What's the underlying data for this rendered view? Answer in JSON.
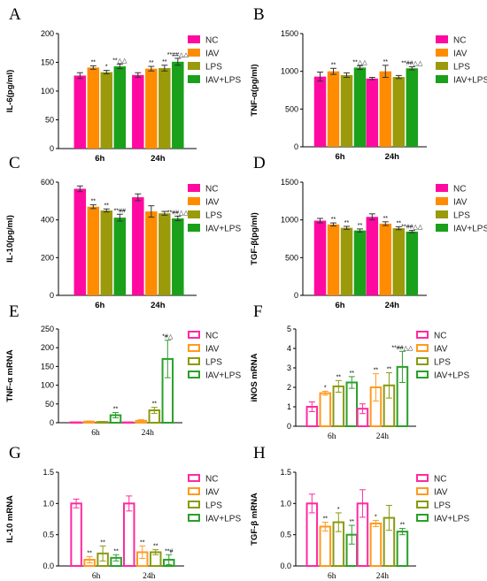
{
  "chart_data": [
    {
      "panel": "A",
      "type": "bar",
      "filled": true,
      "categories": [
        "6h",
        "24h"
      ],
      "ylabel": "IL-6(pg/ml)",
      "ylim": [
        0,
        200
      ],
      "yticks": [
        0,
        50,
        100,
        150,
        200
      ],
      "series": [
        {
          "name": "NC",
          "color": "#ff0aa0",
          "values": [
            127,
            128
          ],
          "errors": [
            5,
            4
          ]
        },
        {
          "name": "IAV",
          "color": "#ff8c00",
          "values": [
            141,
            139
          ],
          "errors": [
            3,
            4
          ]
        },
        {
          "name": "LPS",
          "color": "#9a9a0a",
          "values": [
            133,
            140
          ],
          "errors": [
            3,
            5
          ]
        },
        {
          "name": "IAV+LPS",
          "color": "#1aa01a",
          "values": [
            143,
            151
          ],
          "errors": [
            4,
            6
          ]
        }
      ],
      "annotations": [
        [
          "",
          "**",
          "*",
          "**△△"
        ],
        [
          "",
          "**",
          "**",
          "**##△△"
        ]
      ]
    },
    {
      "panel": "B",
      "type": "bar",
      "filled": true,
      "categories": [
        "6h",
        "24h"
      ],
      "ylabel": "TNF-α(pg/ml)",
      "ylim": [
        0,
        1500
      ],
      "yticks": [
        0,
        500,
        1000,
        1500
      ],
      "series": [
        {
          "name": "NC",
          "color": "#ff0aa0",
          "values": [
            930,
            905
          ],
          "errors": [
            60,
            15
          ]
        },
        {
          "name": "IAV",
          "color": "#ff8c00",
          "values": [
            1000,
            1000
          ],
          "errors": [
            40,
            80
          ]
        },
        {
          "name": "LPS",
          "color": "#9a9a0a",
          "values": [
            950,
            925
          ],
          "errors": [
            30,
            20
          ]
        },
        {
          "name": "IAV+LPS",
          "color": "#1aa01a",
          "values": [
            1050,
            1040
          ],
          "errors": [
            25,
            20
          ]
        }
      ],
      "annotations": [
        [
          "",
          "**",
          "",
          "**△△"
        ],
        [
          "",
          "**",
          "",
          "**##△△"
        ]
      ]
    },
    {
      "panel": "C",
      "type": "bar",
      "filled": true,
      "categories": [
        "6h",
        "24h"
      ],
      "ylabel": "IL-10(pg/ml)",
      "ylim": [
        0,
        600
      ],
      "yticks": [
        0,
        200,
        400,
        600
      ],
      "series": [
        {
          "name": "NC",
          "color": "#ff0aa0",
          "values": [
            565,
            520
          ],
          "errors": [
            15,
            18
          ]
        },
        {
          "name": "IAV",
          "color": "#ff8c00",
          "values": [
            470,
            445
          ],
          "errors": [
            10,
            30
          ]
        },
        {
          "name": "LPS",
          "color": "#9a9a0a",
          "values": [
            450,
            435
          ],
          "errors": [
            8,
            10
          ]
        },
        {
          "name": "IAV+LPS",
          "color": "#1aa01a",
          "values": [
            412,
            408
          ],
          "errors": [
            18,
            12
          ]
        }
      ],
      "annotations": [
        [
          "",
          "**",
          "**",
          "**##"
        ],
        [
          "",
          "",
          "",
          "**##△△"
        ]
      ]
    },
    {
      "panel": "D",
      "type": "bar",
      "filled": true,
      "categories": [
        "6h",
        "24h"
      ],
      "ylabel": "TGF-β(pg/ml)",
      "ylim": [
        0,
        1500
      ],
      "yticks": [
        0,
        500,
        1000,
        1500
      ],
      "series": [
        {
          "name": "NC",
          "color": "#ff0aa0",
          "values": [
            990,
            1040
          ],
          "errors": [
            30,
            40
          ]
        },
        {
          "name": "IAV",
          "color": "#ff8c00",
          "values": [
            940,
            950
          ],
          "errors": [
            20,
            25
          ]
        },
        {
          "name": "LPS",
          "color": "#9a9a0a",
          "values": [
            895,
            890
          ],
          "errors": [
            20,
            20
          ]
        },
        {
          "name": "IAV+LPS",
          "color": "#1aa01a",
          "values": [
            860,
            845
          ],
          "errors": [
            20,
            15
          ]
        }
      ],
      "annotations": [
        [
          "",
          "**",
          "**",
          "**"
        ],
        [
          "",
          "**",
          "**",
          "**##△△"
        ]
      ]
    },
    {
      "panel": "E",
      "type": "bar",
      "filled": false,
      "categories": [
        "6h",
        "24h"
      ],
      "ylabel": "TNF-α  mRNA",
      "ylim": [
        0,
        250
      ],
      "yticks": [
        0,
        50,
        100,
        150,
        200,
        250
      ],
      "series": [
        {
          "name": "NC",
          "color": "#ff2aa0",
          "values": [
            1,
            1
          ],
          "errors": [
            0.5,
            0.5
          ]
        },
        {
          "name": "IAV",
          "color": "#ff9a20",
          "values": [
            3,
            5
          ],
          "errors": [
            1.5,
            3
          ]
        },
        {
          "name": "LPS",
          "color": "#8a9a10",
          "values": [
            2,
            33
          ],
          "errors": [
            1,
            8
          ]
        },
        {
          "name": "IAV+LPS",
          "color": "#2aa02a",
          "values": [
            20,
            170
          ],
          "errors": [
            7,
            50
          ]
        }
      ],
      "annotations": [
        [
          "",
          "",
          "",
          "**"
        ],
        [
          "",
          "",
          "**",
          "*#△"
        ]
      ]
    },
    {
      "panel": "F",
      "type": "bar",
      "filled": false,
      "categories": [
        "6h",
        "24h"
      ],
      "ylabel": "iNOS mRNA",
      "ylim": [
        0,
        5
      ],
      "yticks": [
        0,
        1,
        2,
        3,
        4,
        5
      ],
      "series": [
        {
          "name": "NC",
          "color": "#ff2aa0",
          "values": [
            1.0,
            0.9
          ],
          "errors": [
            0.25,
            0.25
          ]
        },
        {
          "name": "IAV",
          "color": "#ff9a20",
          "values": [
            1.7,
            2.0
          ],
          "errors": [
            0.1,
            0.7
          ]
        },
        {
          "name": "LPS",
          "color": "#8a9a10",
          "values": [
            2.05,
            2.1
          ],
          "errors": [
            0.3,
            0.65
          ]
        },
        {
          "name": "IAV+LPS",
          "color": "#2aa02a",
          "values": [
            2.25,
            3.05
          ],
          "errors": [
            0.3,
            0.8
          ]
        }
      ],
      "annotations": [
        [
          "",
          "*",
          "**",
          "**"
        ],
        [
          "",
          "**",
          "**",
          "**##△△"
        ]
      ]
    },
    {
      "panel": "G",
      "type": "bar",
      "filled": false,
      "categories": [
        "6h",
        "24h"
      ],
      "ylabel": "IL-10 mRNA",
      "ylim": [
        0,
        1.5
      ],
      "yticks": [
        0.0,
        0.5,
        1.0,
        1.5
      ],
      "series": [
        {
          "name": "NC",
          "color": "#ff2aa0",
          "values": [
            1.0,
            1.0
          ],
          "errors": [
            0.07,
            0.12
          ]
        },
        {
          "name": "IAV",
          "color": "#ff9a20",
          "values": [
            0.1,
            0.22
          ],
          "errors": [
            0.05,
            0.1
          ]
        },
        {
          "name": "LPS",
          "color": "#8a9a10",
          "values": [
            0.2,
            0.22
          ],
          "errors": [
            0.12,
            0.04
          ]
        },
        {
          "name": "IAV+LPS",
          "color": "#2aa02a",
          "values": [
            0.13,
            0.1
          ],
          "errors": [
            0.05,
            0.08
          ]
        }
      ],
      "annotations": [
        [
          "",
          "**",
          "**",
          "**"
        ],
        [
          "",
          "**",
          "**",
          "**#"
        ]
      ]
    },
    {
      "panel": "H",
      "type": "bar",
      "filled": false,
      "categories": [
        "6h",
        "24h"
      ],
      "ylabel": "TGF-β  mRNA",
      "ylim": [
        0,
        1.5
      ],
      "yticks": [
        0.0,
        0.5,
        1.0,
        1.5
      ],
      "series": [
        {
          "name": "NC",
          "color": "#ff2aa0",
          "values": [
            1.0,
            1.0
          ],
          "errors": [
            0.15,
            0.22
          ]
        },
        {
          "name": "IAV",
          "color": "#ff9a20",
          "values": [
            0.63,
            0.68
          ],
          "errors": [
            0.07,
            0.05
          ]
        },
        {
          "name": "LPS",
          "color": "#8a9a10",
          "values": [
            0.7,
            0.77
          ],
          "errors": [
            0.15,
            0.2
          ]
        },
        {
          "name": "IAV+LPS",
          "color": "#2aa02a",
          "values": [
            0.5,
            0.55
          ],
          "errors": [
            0.15,
            0.05
          ]
        }
      ],
      "annotations": [
        [
          "",
          "**",
          "*",
          "**"
        ],
        [
          "",
          "*",
          "",
          "**"
        ]
      ]
    }
  ]
}
